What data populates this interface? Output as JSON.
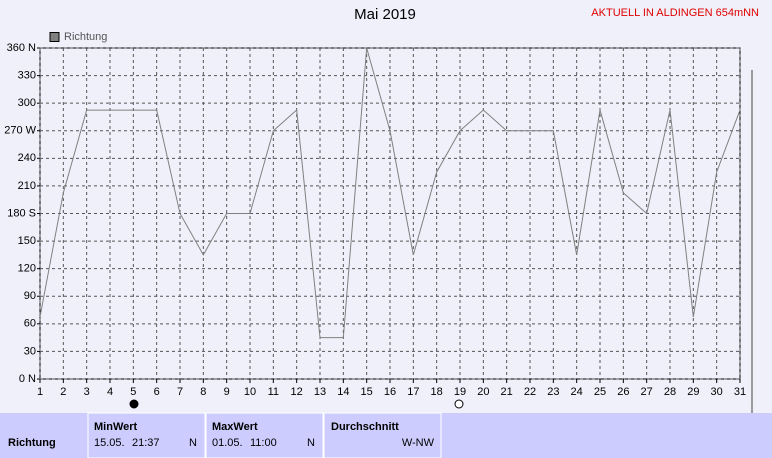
{
  "chart_data": {
    "type": "line",
    "title": "Mai 2019",
    "annotation": "AKTUELL IN ALDINGEN 654mNN",
    "x": [
      1,
      2,
      3,
      4,
      5,
      6,
      7,
      8,
      9,
      10,
      11,
      12,
      13,
      14,
      15,
      16,
      17,
      18,
      19,
      20,
      21,
      22,
      23,
      24,
      25,
      26,
      27,
      28,
      29,
      30,
      31
    ],
    "xlim": [
      1,
      31
    ],
    "xticks": [
      1,
      2,
      3,
      4,
      5,
      6,
      7,
      8,
      9,
      10,
      11,
      12,
      13,
      14,
      15,
      16,
      17,
      18,
      19,
      20,
      21,
      22,
      23,
      24,
      25,
      26,
      27,
      28,
      29,
      30,
      31
    ],
    "ylim": [
      0,
      360
    ],
    "yticks": [
      {
        "value": 0,
        "label": "0 N"
      },
      30,
      60,
      90,
      120,
      150,
      {
        "value": 180,
        "label": "180 S"
      },
      210,
      240,
      {
        "value": 270,
        "label": "270 W"
      },
      300,
      330,
      {
        "value": 360,
        "label": "360 N"
      }
    ],
    "grid": true,
    "legend": "top-left",
    "series": [
      {
        "name": "Richtung",
        "color": "#808080",
        "values": [
          67.5,
          202.5,
          292.5,
          292.5,
          292.5,
          292.5,
          180,
          135,
          180,
          180,
          270,
          292.5,
          45,
          45,
          360,
          270,
          135,
          225,
          270,
          292.5,
          270,
          270,
          270,
          135,
          292.5,
          202.5,
          180,
          292.5,
          67.5,
          225,
          292.5
        ]
      }
    ]
  },
  "summary": {
    "header": "Richtung",
    "columns": [
      {
        "title": "MinWert",
        "date": "15.05.",
        "time": "21:37",
        "dir": "N"
      },
      {
        "title": "MaxWert",
        "date": "01.05.",
        "time": "11:00",
        "dir": "N"
      },
      {
        "title": "Durchschnitt",
        "dir": "W-NW"
      }
    ]
  }
}
